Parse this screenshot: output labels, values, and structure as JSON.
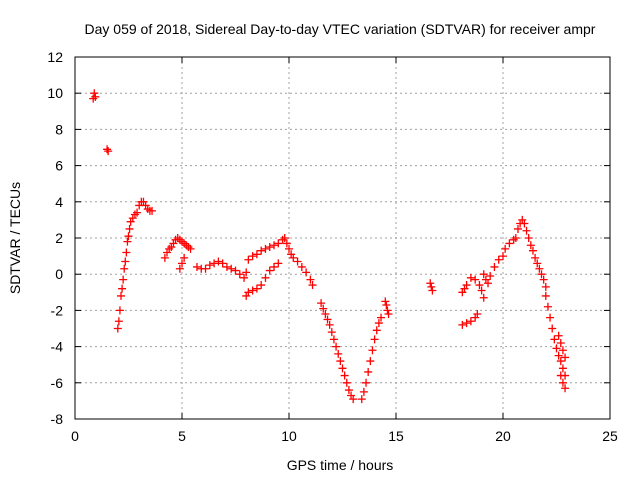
{
  "chart_data": {
    "type": "scatter",
    "title": "Day 059 of 2018, Sidereal Day-to-day VTEC variation (SDTVAR) for receiver ampr",
    "xlabel": "GPS time / hours",
    "ylabel": "SDTVAR / TECUs",
    "xlim": [
      0,
      25
    ],
    "ylim": [
      -8,
      12
    ],
    "xticks": [
      0,
      5,
      10,
      15,
      20,
      25
    ],
    "yticks": [
      -8,
      -6,
      -4,
      -2,
      0,
      2,
      4,
      6,
      8,
      10,
      12
    ],
    "grid": true,
    "marker": "+",
    "series_color": "#ff0000",
    "series": [
      {
        "values": [
          [
            0.85,
            9.7
          ],
          [
            0.9,
            10.0
          ],
          [
            0.95,
            9.8
          ],
          [
            1.5,
            6.9
          ],
          [
            1.55,
            6.8
          ],
          [
            2.0,
            -3.0
          ],
          [
            2.05,
            -2.6
          ],
          [
            2.1,
            -2.0
          ],
          [
            2.15,
            -1.2
          ],
          [
            2.2,
            -0.8
          ],
          [
            2.25,
            -0.3
          ],
          [
            2.3,
            0.3
          ],
          [
            2.35,
            0.7
          ],
          [
            2.4,
            1.2
          ],
          [
            2.45,
            1.8
          ],
          [
            2.5,
            2.1
          ],
          [
            2.55,
            2.5
          ],
          [
            2.6,
            2.9
          ],
          [
            2.7,
            3.1
          ],
          [
            2.8,
            3.3
          ],
          [
            2.9,
            3.4
          ],
          [
            3.0,
            3.8
          ],
          [
            3.1,
            4.0
          ],
          [
            3.2,
            4.0
          ],
          [
            3.3,
            3.8
          ],
          [
            3.4,
            3.6
          ],
          [
            3.5,
            3.5
          ],
          [
            3.6,
            3.5
          ],
          [
            4.2,
            0.9
          ],
          [
            4.3,
            1.2
          ],
          [
            4.4,
            1.4
          ],
          [
            4.5,
            1.5
          ],
          [
            4.6,
            1.7
          ],
          [
            4.7,
            1.9
          ],
          [
            4.8,
            2.0
          ],
          [
            4.9,
            1.9
          ],
          [
            5.0,
            1.8
          ],
          [
            5.1,
            1.7
          ],
          [
            5.2,
            1.6
          ],
          [
            5.3,
            1.5
          ],
          [
            5.4,
            1.4
          ],
          [
            4.9,
            0.3
          ],
          [
            5.0,
            0.6
          ],
          [
            5.1,
            0.9
          ],
          [
            5.7,
            0.4
          ],
          [
            5.9,
            0.3
          ],
          [
            6.1,
            0.3
          ],
          [
            6.3,
            0.5
          ],
          [
            6.5,
            0.6
          ],
          [
            6.7,
            0.7
          ],
          [
            6.9,
            0.6
          ],
          [
            7.1,
            0.4
          ],
          [
            7.3,
            0.3
          ],
          [
            7.5,
            0.2
          ],
          [
            7.7,
            0.0
          ],
          [
            7.9,
            -0.2
          ],
          [
            8.0,
            0.1
          ],
          [
            8.0,
            -1.2
          ],
          [
            8.1,
            -1.0
          ],
          [
            8.3,
            -0.9
          ],
          [
            8.5,
            -0.8
          ],
          [
            8.7,
            -0.6
          ],
          [
            8.9,
            -0.2
          ],
          [
            9.1,
            0.2
          ],
          [
            9.3,
            0.4
          ],
          [
            9.5,
            0.6
          ],
          [
            8.1,
            0.8
          ],
          [
            8.3,
            1.0
          ],
          [
            8.5,
            1.1
          ],
          [
            8.7,
            1.3
          ],
          [
            8.9,
            1.4
          ],
          [
            9.1,
            1.5
          ],
          [
            9.3,
            1.6
          ],
          [
            9.5,
            1.7
          ],
          [
            9.7,
            1.9
          ],
          [
            9.8,
            2.0
          ],
          [
            9.9,
            1.7
          ],
          [
            10.0,
            1.4
          ],
          [
            10.1,
            1.1
          ],
          [
            10.2,
            0.9
          ],
          [
            10.4,
            0.7
          ],
          [
            10.6,
            0.4
          ],
          [
            10.8,
            0.1
          ],
          [
            11.0,
            -0.3
          ],
          [
            11.1,
            -0.6
          ],
          [
            11.5,
            -1.6
          ],
          [
            11.6,
            -1.9
          ],
          [
            11.7,
            -2.2
          ],
          [
            11.8,
            -2.5
          ],
          [
            11.9,
            -2.8
          ],
          [
            12.0,
            -3.2
          ],
          [
            12.1,
            -3.6
          ],
          [
            12.2,
            -4.0
          ],
          [
            12.3,
            -4.4
          ],
          [
            12.4,
            -4.8
          ],
          [
            12.5,
            -5.2
          ],
          [
            12.6,
            -5.6
          ],
          [
            12.7,
            -6.0
          ],
          [
            12.8,
            -6.4
          ],
          [
            12.9,
            -6.7
          ],
          [
            13.0,
            -6.9
          ],
          [
            13.4,
            -6.9
          ],
          [
            13.5,
            -6.5
          ],
          [
            13.6,
            -6.0
          ],
          [
            13.7,
            -5.4
          ],
          [
            13.8,
            -4.8
          ],
          [
            13.9,
            -4.2
          ],
          [
            14.0,
            -3.6
          ],
          [
            14.1,
            -3.1
          ],
          [
            14.2,
            -2.7
          ],
          [
            14.3,
            -2.4
          ],
          [
            14.5,
            -1.5
          ],
          [
            14.55,
            -1.7
          ],
          [
            14.6,
            -2.0
          ],
          [
            14.65,
            -2.2
          ],
          [
            16.6,
            -0.5
          ],
          [
            16.65,
            -0.7
          ],
          [
            16.7,
            -0.9
          ],
          [
            18.1,
            -1.0
          ],
          [
            18.2,
            -0.8
          ],
          [
            18.3,
            -0.6
          ],
          [
            18.1,
            -2.8
          ],
          [
            18.3,
            -2.7
          ],
          [
            18.5,
            -2.6
          ],
          [
            18.7,
            -2.4
          ],
          [
            18.8,
            -2.2
          ],
          [
            18.5,
            -0.2
          ],
          [
            18.7,
            -0.3
          ],
          [
            18.9,
            -0.6
          ],
          [
            19.0,
            -0.9
          ],
          [
            19.1,
            -1.3
          ],
          [
            19.1,
            0.0
          ],
          [
            19.2,
            -0.3
          ],
          [
            19.3,
            -0.5
          ],
          [
            19.4,
            -0.1
          ],
          [
            19.6,
            0.4
          ],
          [
            19.8,
            0.8
          ],
          [
            20.0,
            1.0
          ],
          [
            20.1,
            1.4
          ],
          [
            20.3,
            1.7
          ],
          [
            20.5,
            1.9
          ],
          [
            20.6,
            2.0
          ],
          [
            20.7,
            2.5
          ],
          [
            20.8,
            2.8
          ],
          [
            20.9,
            3.0
          ],
          [
            21.0,
            2.8
          ],
          [
            21.1,
            2.4
          ],
          [
            21.2,
            2.0
          ],
          [
            21.3,
            1.6
          ],
          [
            21.4,
            1.3
          ],
          [
            21.5,
            0.9
          ],
          [
            21.6,
            0.6
          ],
          [
            21.7,
            0.3
          ],
          [
            21.8,
            0.0
          ],
          [
            21.9,
            -0.3
          ],
          [
            22.0,
            -0.7
          ],
          [
            22.0,
            -1.2
          ],
          [
            22.1,
            -1.8
          ],
          [
            22.2,
            -2.4
          ],
          [
            22.3,
            -3.0
          ],
          [
            22.4,
            -3.6
          ],
          [
            22.5,
            -4.1
          ],
          [
            22.6,
            -4.5
          ],
          [
            22.7,
            -4.8
          ],
          [
            22.8,
            -5.2
          ],
          [
            22.9,
            -5.6
          ],
          [
            22.9,
            -4.6
          ],
          [
            22.8,
            -4.2
          ],
          [
            22.7,
            -3.8
          ],
          [
            22.6,
            -3.4
          ],
          [
            22.7,
            -5.6
          ],
          [
            22.8,
            -6.0
          ],
          [
            22.9,
            -6.3
          ]
        ]
      }
    ]
  }
}
